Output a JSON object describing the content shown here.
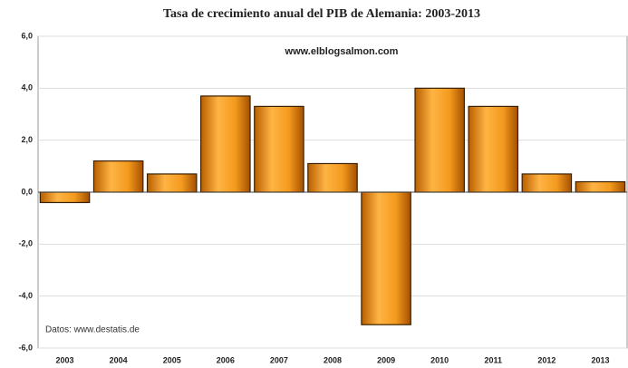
{
  "chart_data": {
    "type": "bar",
    "title": "Tasa de crecimiento anual del PIB de Alemania: 2003-2013",
    "annotations": [
      "www.elblogsalmon.com",
      "Datos: www.destatis.de"
    ],
    "categories": [
      "2003",
      "2004",
      "2005",
      "2006",
      "2007",
      "2008",
      "2009",
      "2010",
      "2011",
      "2012",
      "2013"
    ],
    "values": [
      -0.4,
      1.2,
      0.7,
      3.7,
      3.3,
      1.1,
      -5.1,
      4.0,
      3.3,
      0.7,
      0.4
    ],
    "color": "#f39a1e",
    "ylim": [
      -6,
      6
    ],
    "yticks": [
      {
        "value": -6,
        "label": "-6,0"
      },
      {
        "value": -4,
        "label": "-4,0"
      },
      {
        "value": -2,
        "label": "-2,0"
      },
      {
        "value": 0,
        "label": "0,0"
      },
      {
        "value": 2,
        "label": "2,0"
      },
      {
        "value": 4,
        "label": "4,0"
      },
      {
        "value": 6,
        "label": "6,0"
      }
    ],
    "grid": true
  }
}
